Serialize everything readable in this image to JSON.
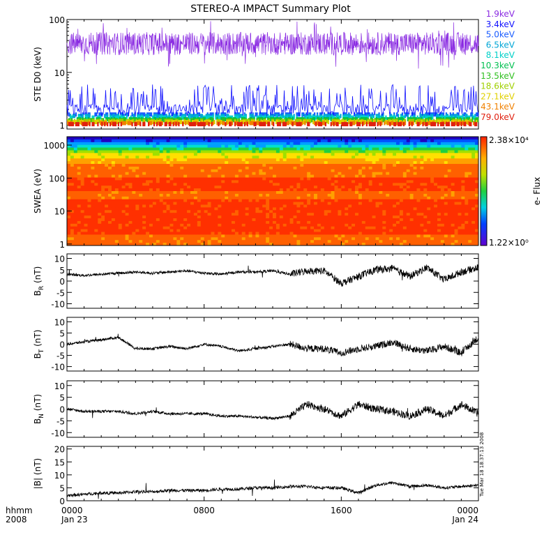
{
  "title": "STEREO-A IMPACT Summary Plot",
  "x_axis": {
    "row1_labels": [
      "hhmm",
      "0000",
      "0800",
      "1600",
      "0000"
    ],
    "row2_labels": [
      "2008",
      "Jan 23",
      "",
      "",
      "Jan 24"
    ],
    "hours": [
      0,
      8,
      16,
      24
    ]
  },
  "timestamp": "Tue Mar 18 18:37:13 2008",
  "chart_data": [
    {
      "type": "line",
      "ylabel": "STE D0 (keV)",
      "yscale": "log",
      "ylim": [
        0.85,
        100
      ],
      "yticks": [
        "1",
        "10",
        "100"
      ],
      "legend_placement": "right",
      "series": [
        {
          "name": "1.9keV",
          "color": "#8a2be2",
          "level": 35
        },
        {
          "name": "3.4keV",
          "color": "#1010ff",
          "level": 2.4
        },
        {
          "name": "5.0keV",
          "color": "#1a5cff",
          "level": 1.6
        },
        {
          "name": "6.5keV",
          "color": "#00a6d6",
          "level": 1.5
        },
        {
          "name": "8.1keV",
          "color": "#00d0c8",
          "level": 1.4
        },
        {
          "name": "10.3keV",
          "color": "#00c050",
          "level": 1.3
        },
        {
          "name": "13.5keV",
          "color": "#30c020",
          "level": 1.25
        },
        {
          "name": "18.6keV",
          "color": "#a0d000",
          "level": 1.2
        },
        {
          "name": "27.1keV",
          "color": "#e0d000",
          "level": 1.15
        },
        {
          "name": "43.1keV",
          "color": "#f08000",
          "level": 1.1
        },
        {
          "name": "79.0keV",
          "color": "#e02010",
          "level": 1.05
        }
      ]
    },
    {
      "type": "heatmap",
      "ylabel": "SWEA (eV)",
      "yscale": "log",
      "ylim": [
        0.9,
        1800
      ],
      "yticks": [
        "1",
        "10",
        "100",
        "1000"
      ],
      "colorbar": {
        "label": "e- Flux",
        "max_label": "2.38×10⁴",
        "min_label": "1.22×10⁰"
      }
    },
    {
      "type": "line",
      "ylabel": "B_R (nT)",
      "ylim": [
        -12,
        12
      ],
      "yticks": [
        -10,
        -5,
        0,
        5,
        10
      ],
      "x": [
        0,
        1,
        2,
        3,
        4,
        5,
        6,
        7,
        8,
        9,
        10,
        11,
        12,
        13,
        14,
        15,
        16,
        17,
        18,
        19,
        20,
        21,
        22,
        23,
        24
      ],
      "y": [
        3,
        2.5,
        3,
        3.5,
        4,
        3.5,
        4,
        4.5,
        3.5,
        3,
        4,
        4,
        4.5,
        3,
        4.5,
        4.5,
        -1,
        2,
        5,
        5.5,
        2,
        6,
        0.5,
        4,
        6
      ]
    },
    {
      "type": "line",
      "ylabel": "B_T (nT)",
      "ylim": [
        -12,
        12
      ],
      "yticks": [
        -10,
        -5,
        0,
        5,
        10
      ],
      "x": [
        0,
        1,
        2,
        3,
        4,
        5,
        6,
        7,
        8,
        9,
        10,
        11,
        12,
        13,
        14,
        15,
        16,
        17,
        18,
        19,
        20,
        21,
        22,
        23,
        24
      ],
      "y": [
        0,
        1,
        2,
        3,
        -2,
        -2,
        -1,
        -2,
        0,
        -1,
        -3,
        -2,
        -1,
        0,
        -2,
        -2,
        -4,
        -2,
        -1,
        1,
        -2,
        -3,
        -1,
        -4,
        3
      ]
    },
    {
      "type": "line",
      "ylabel": "B_N (nT)",
      "ylim": [
        -12,
        12
      ],
      "yticks": [
        -10,
        -5,
        0,
        5,
        10
      ],
      "x": [
        0,
        1,
        2,
        3,
        4,
        5,
        6,
        7,
        8,
        9,
        10,
        11,
        12,
        13,
        14,
        15,
        16,
        17,
        18,
        19,
        20,
        21,
        22,
        23,
        24
      ],
      "y": [
        0,
        -1,
        -1,
        -1,
        -2,
        -1,
        -2,
        -2,
        -2,
        -3,
        -3,
        -3.5,
        -4,
        -3,
        2,
        0,
        -3,
        2,
        0,
        -1,
        -3,
        0,
        -3,
        2,
        -2
      ]
    },
    {
      "type": "line",
      "ylabel": "|B| (nT)",
      "ylim": [
        0,
        21
      ],
      "yticks": [
        0,
        5,
        10,
        15,
        20
      ],
      "x": [
        0,
        1,
        2,
        3,
        4,
        5,
        6,
        7,
        8,
        9,
        10,
        11,
        12,
        13,
        14,
        15,
        16,
        17,
        18,
        19,
        20,
        21,
        22,
        23,
        24
      ],
      "y": [
        2,
        2.5,
        3,
        3,
        3.5,
        3.5,
        4,
        4,
        4,
        4.5,
        4.5,
        5,
        5,
        5.5,
        5.5,
        5,
        5,
        3,
        6,
        7,
        5.5,
        6,
        5,
        5.5,
        6
      ]
    }
  ]
}
